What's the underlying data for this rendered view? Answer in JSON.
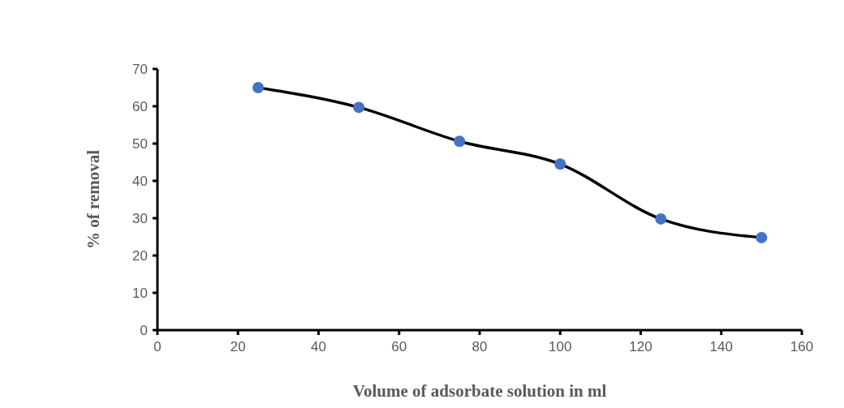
{
  "chart_data": {
    "type": "line",
    "xlabel": "Volume of adsorbate solution in ml",
    "ylabel": "% of removal",
    "x": [
      25,
      50,
      75,
      100,
      125,
      150
    ],
    "series": [
      {
        "color": "#000000",
        "colors": [
          "#4472c4",
          "#4472c4",
          "#4472c4",
          "#4472c4",
          "#4472c4",
          "#4472c4"
        ],
        "values": [
          65,
          59.7,
          50.6,
          44.5,
          29.8,
          24.8
        ]
      }
    ],
    "xlim": [
      0,
      160
    ],
    "xticks": [
      0,
      20,
      40,
      60,
      80,
      100,
      120,
      140,
      160
    ],
    "ylim": [
      0,
      70
    ],
    "yticks": [
      0,
      10,
      20,
      30,
      40,
      50,
      60,
      70
    ],
    "grid": false,
    "legend": false,
    "marker": "circle",
    "line_style": "solid"
  }
}
